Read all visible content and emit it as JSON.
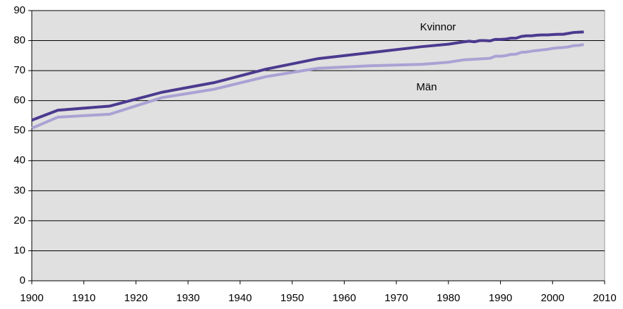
{
  "chart_data": {
    "type": "line",
    "x": [
      1900,
      1905,
      1915,
      1925,
      1935,
      1945,
      1955,
      1965,
      1975,
      1980,
      1983,
      1984,
      1985,
      1986,
      1987,
      1988,
      1989,
      1990,
      1991,
      1992,
      1993,
      1994,
      1995,
      1996,
      1997,
      1998,
      1999,
      2000,
      2001,
      2002,
      2003,
      2004,
      2005,
      2006
    ],
    "series": [
      {
        "name": "Kvinnor",
        "color": "#4b3a8f",
        "values": [
          53.5,
          56.8,
          58.2,
          62.8,
          66.0,
          70.5,
          74.0,
          76.0,
          78.0,
          78.8,
          79.6,
          79.8,
          79.6,
          80.0,
          80.0,
          79.9,
          80.4,
          80.4,
          80.5,
          80.8,
          80.8,
          81.4,
          81.6,
          81.6,
          81.8,
          81.9,
          81.9,
          82.0,
          82.1,
          82.1,
          82.4,
          82.7,
          82.8,
          82.9
        ]
      },
      {
        "name": "Män",
        "color": "#aaa2d4",
        "values": [
          50.8,
          54.5,
          55.5,
          61.0,
          63.8,
          68.0,
          70.8,
          71.6,
          72.1,
          72.8,
          73.6,
          73.7,
          73.8,
          73.9,
          74.0,
          74.1,
          74.8,
          74.8,
          75.0,
          75.4,
          75.5,
          76.1,
          76.2,
          76.5,
          76.7,
          76.9,
          77.1,
          77.4,
          77.6,
          77.7,
          77.9,
          78.3,
          78.4,
          78.7
        ]
      }
    ],
    "xlim": [
      1900,
      2010
    ],
    "xticks": [
      1900,
      1910,
      1920,
      1930,
      1940,
      1950,
      1960,
      1970,
      1980,
      1990,
      2000,
      2010
    ],
    "ylim": [
      0,
      90
    ],
    "yticks": [
      0,
      10,
      20,
      30,
      40,
      50,
      60,
      70,
      80,
      90
    ],
    "grid": true,
    "background": "#e0e0e0"
  }
}
